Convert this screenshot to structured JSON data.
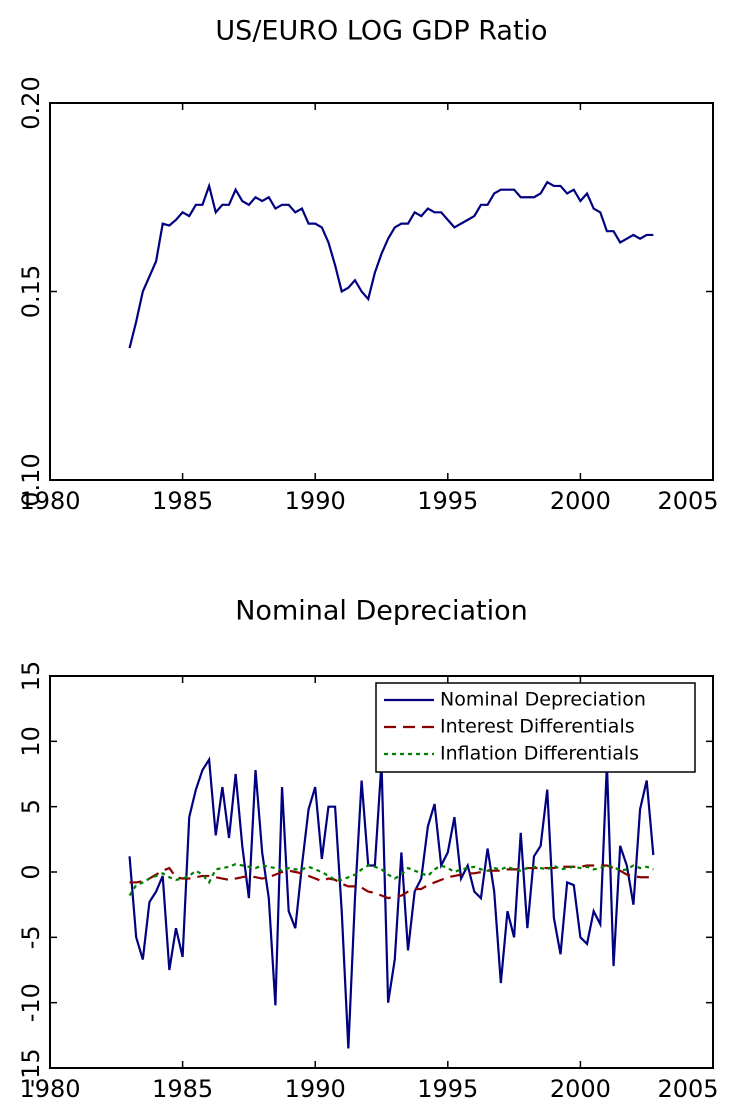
{
  "chart_data": [
    {
      "type": "line",
      "title": "US/EURO LOG GDP Ratio",
      "x": [
        1983,
        1983.25,
        1983.5,
        1983.75,
        1984,
        1984.25,
        1984.5,
        1984.75,
        1985,
        1985.25,
        1985.5,
        1985.75,
        1986,
        1986.25,
        1986.5,
        1986.75,
        1987,
        1987.25,
        1987.5,
        1987.75,
        1988,
        1988.25,
        1988.5,
        1988.75,
        1989,
        1989.25,
        1989.5,
        1989.75,
        1990,
        1990.25,
        1990.5,
        1990.75,
        1991,
        1991.25,
        1991.5,
        1991.75,
        1992,
        1992.25,
        1992.5,
        1992.75,
        1993,
        1993.25,
        1993.5,
        1993.75,
        1994,
        1994.25,
        1994.5,
        1994.75,
        1995,
        1995.25,
        1995.5,
        1995.75,
        1996,
        1996.25,
        1996.5,
        1996.75,
        1997,
        1997.25,
        1997.5,
        1997.75,
        1998,
        1998.25,
        1998.5,
        1998.75,
        1999,
        1999.25,
        1999.5,
        1999.75,
        2000,
        2000.25,
        2000.5,
        2000.75,
        2001,
        2001.25,
        2001.5,
        2001.75,
        2002,
        2002.25,
        2002.5,
        2002.75
      ],
      "series": [
        {
          "name": "US/EURO LOG GDP Ratio",
          "color": "#000080",
          "linestyle": "solid",
          "values": [
            0.135,
            0.142,
            0.15,
            0.154,
            0.158,
            0.168,
            0.1675,
            0.169,
            0.171,
            0.17,
            0.173,
            0.173,
            0.178,
            0.171,
            0.173,
            0.173,
            0.177,
            0.174,
            0.173,
            0.175,
            0.174,
            0.175,
            0.172,
            0.173,
            0.173,
            0.171,
            0.172,
            0.168,
            0.168,
            0.167,
            0.163,
            0.157,
            0.15,
            0.151,
            0.153,
            0.15,
            0.148,
            0.155,
            0.16,
            0.164,
            0.167,
            0.168,
            0.168,
            0.171,
            0.17,
            0.172,
            0.171,
            0.171,
            0.169,
            0.167,
            0.168,
            0.169,
            0.17,
            0.173,
            0.173,
            0.176,
            0.177,
            0.177,
            0.177,
            0.175,
            0.175,
            0.175,
            0.176,
            0.179,
            0.178,
            0.178,
            0.176,
            0.177,
            0.174,
            0.176,
            0.172,
            0.171,
            0.166,
            0.166,
            0.163,
            0.164,
            0.165,
            0.164,
            0.165,
            0.165
          ]
        }
      ],
      "xlim": [
        1980,
        2005
      ],
      "xticks": [
        1980,
        1985,
        1990,
        1995,
        2000,
        2005
      ],
      "ylim": [
        0.1,
        0.2
      ],
      "yticks": [
        {
          "value": 0.1,
          "label": "0.10"
        },
        {
          "value": 0.15,
          "label": "0.15"
        },
        {
          "value": 0.2,
          "label": "0.20"
        }
      ],
      "grid": false,
      "legend": false
    },
    {
      "type": "line",
      "title": "Nominal Depreciation",
      "x": [
        1983,
        1983.25,
        1983.5,
        1983.75,
        1984,
        1984.25,
        1984.5,
        1984.75,
        1985,
        1985.25,
        1985.5,
        1985.75,
        1986,
        1986.25,
        1986.5,
        1986.75,
        1987,
        1987.25,
        1987.5,
        1987.75,
        1988,
        1988.25,
        1988.5,
        1988.75,
        1989,
        1989.25,
        1989.5,
        1989.75,
        1990,
        1990.25,
        1990.5,
        1990.75,
        1991,
        1991.25,
        1991.5,
        1991.75,
        1992,
        1992.25,
        1992.5,
        1992.75,
        1993,
        1993.25,
        1993.5,
        1993.75,
        1994,
        1994.25,
        1994.5,
        1994.75,
        1995,
        1995.25,
        1995.5,
        1995.75,
        1996,
        1996.25,
        1996.5,
        1996.75,
        1997,
        1997.25,
        1997.5,
        1997.75,
        1998,
        1998.25,
        1998.5,
        1998.75,
        1999,
        1999.25,
        1999.5,
        1999.75,
        2000,
        2000.25,
        2000.5,
        2000.75,
        2001,
        2001.25,
        2001.5,
        2001.75,
        2002,
        2002.25,
        2002.5,
        2002.75
      ],
      "series": [
        {
          "name": "Nominal Depreciation",
          "color": "#000080",
          "linestyle": "solid",
          "values": [
            1.2,
            -5,
            -6.7,
            -2.3,
            -1.5,
            -0.3,
            -7.5,
            -4.3,
            -6.5,
            4.2,
            6.3,
            7.8,
            8.6,
            2.8,
            6.5,
            2.6,
            7.5,
            2,
            -2,
            7.8,
            1.5,
            -2,
            -10.2,
            6.5,
            -3,
            -4.3,
            0.5,
            4.8,
            6.5,
            1,
            5,
            5,
            -3,
            -13.5,
            -2,
            7,
            0.5,
            0.5,
            8.4,
            -10,
            -6.7,
            1.5,
            -6,
            -1.5,
            -0.5,
            3.5,
            5.2,
            0.5,
            1.5,
            4.2,
            -0.5,
            0.5,
            -1.5,
            -2,
            1.8,
            -1.5,
            -8.5,
            -3,
            -5,
            3,
            -4.3,
            1.2,
            2,
            6.3,
            -3.5,
            -6.3,
            -0.8,
            -1,
            -5,
            -5.5,
            -3,
            -4,
            8.3,
            -7.2,
            2,
            0.5,
            -2.5,
            4.8,
            7,
            1.3
          ]
        },
        {
          "name": "Interest Differentials",
          "color": "#8b0000",
          "linestyle": "dashed",
          "values": [
            -0.8,
            -0.8,
            -0.7,
            -0.5,
            -0.2,
            0.1,
            0.3,
            -0.4,
            -0.5,
            -0.5,
            -0.4,
            -0.3,
            -0.3,
            -0.4,
            -0.5,
            -0.6,
            -0.5,
            -0.4,
            -0.3,
            -0.4,
            -0.5,
            -0.4,
            -0.2,
            0,
            0.1,
            0,
            -0.1,
            -0.3,
            -0.5,
            -0.7,
            -0.5,
            -0.6,
            -0.9,
            -1.1,
            -1.1,
            -1.2,
            -1.5,
            -1.6,
            -1.8,
            -2.0,
            -1.9,
            -1.8,
            -1.5,
            -1.3,
            -1.3,
            -1.0,
            -0.8,
            -0.6,
            -0.4,
            -0.3,
            -0.2,
            -0.1,
            -0.1,
            0,
            0.1,
            0.1,
            0.1,
            0.2,
            0.2,
            0.2,
            0.3,
            0.3,
            0.3,
            0.3,
            0.3,
            0.4,
            0.4,
            0.4,
            0.4,
            0.5,
            0.5,
            0.5,
            0.5,
            0.3,
            0.1,
            -0.2,
            -0.3,
            -0.4,
            -0.4,
            -0.4
          ]
        },
        {
          "name": "Inflation Differentials",
          "color": "#008000",
          "linestyle": "dotted",
          "values": [
            -1.8,
            -1.0,
            -0.8,
            -0.5,
            -0.3,
            -0.1,
            -0.4,
            -0.6,
            -0.5,
            -0.3,
            0.1,
            -0.2,
            -0.8,
            0.2,
            0.3,
            0.4,
            0.6,
            0.5,
            0.4,
            0.3,
            0.5,
            0.4,
            0.3,
            0.1,
            0.3,
            0.2,
            0.2,
            0.4,
            0.2,
            0,
            -0.3,
            -0.6,
            -0.6,
            -0.4,
            -0.2,
            0.2,
            0.5,
            0.4,
            0.2,
            -0.2,
            -0.5,
            -0.2,
            0.3,
            0.1,
            -0.1,
            -0.3,
            0.2,
            0.5,
            0.3,
            0,
            0.2,
            0.3,
            0.4,
            0.2,
            0.1,
            0.3,
            0.2,
            0.4,
            0.2,
            0.1,
            0.3,
            0.4,
            0.3,
            0.2,
            0.5,
            0.2,
            0.3,
            0.4,
            0.3,
            0.4,
            0.2,
            0.3,
            0.5,
            0.4,
            0.1,
            0.2,
            0.5,
            0.3,
            0.4,
            0.2
          ]
        }
      ],
      "xlim": [
        1980,
        2005
      ],
      "xticks": [
        1980,
        1985,
        1990,
        1995,
        2000,
        2005
      ],
      "ylim": [
        -15,
        15
      ],
      "yticks": [
        -15,
        -10,
        -5,
        0,
        5,
        10,
        15
      ],
      "grid": false,
      "legend": "upper right"
    }
  ]
}
